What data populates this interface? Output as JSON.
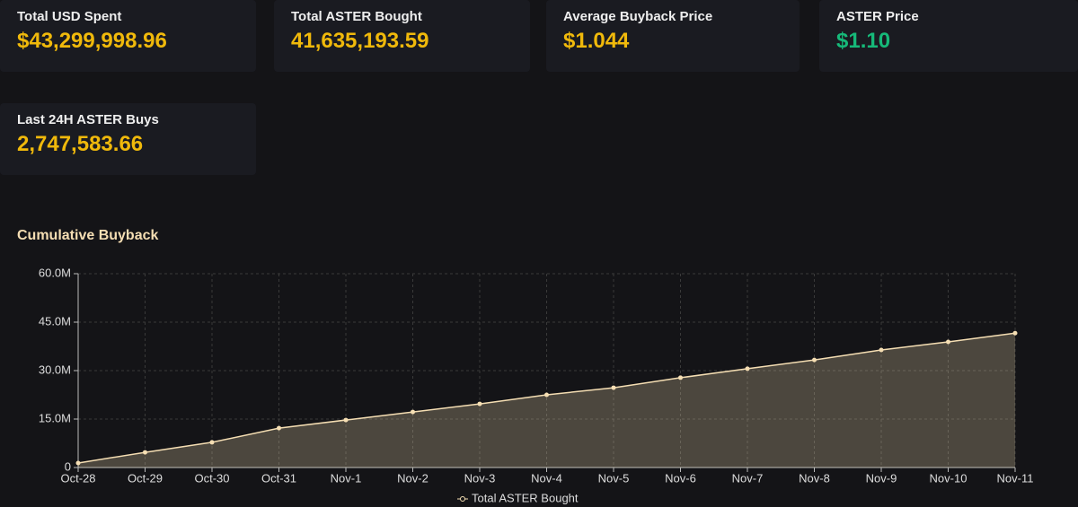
{
  "cards": [
    {
      "label": "Total USD Spent",
      "value": "$43,299,998.96",
      "color": "#f0b90b"
    },
    {
      "label": "Total ASTER Bought",
      "value": "41,635,193.59",
      "color": "#f0b90b"
    },
    {
      "label": "Average Buyback Price",
      "value": "$1.044",
      "color": "#f0b90b"
    },
    {
      "label": "ASTER Price",
      "value": "$1.10",
      "color": "#16b979"
    },
    {
      "label": "Last 24H ASTER Buys",
      "value": "2,747,583.66",
      "color": "#f0b90b"
    }
  ],
  "chart_data": {
    "type": "area",
    "title": "Cumulative Buyback",
    "categories": [
      "Oct-28",
      "Oct-29",
      "Oct-30",
      "Oct-31",
      "Nov-1",
      "Nov-2",
      "Nov-3",
      "Nov-4",
      "Nov-5",
      "Nov-6",
      "Nov-7",
      "Nov-8",
      "Nov-9",
      "Nov-10",
      "Nov-11"
    ],
    "series": [
      {
        "name": "Total ASTER Bought",
        "color": "#f5deb3",
        "values": [
          1400000,
          4700000,
          7800000,
          12200000,
          14700000,
          17200000,
          19700000,
          22500000,
          24700000,
          27800000,
          30600000,
          33300000,
          36400000,
          38900000,
          41600000
        ]
      }
    ],
    "ylim": [
      0,
      60000000
    ],
    "yticks": [
      0,
      {
        "value": 15000000,
        "label": "15.0M"
      },
      {
        "value": 30000000,
        "label": "30.0M"
      },
      {
        "value": 45000000,
        "label": "45.0M"
      },
      {
        "value": 60000000,
        "label": "60.0M"
      }
    ],
    "grid": true,
    "legend": "bottom"
  }
}
